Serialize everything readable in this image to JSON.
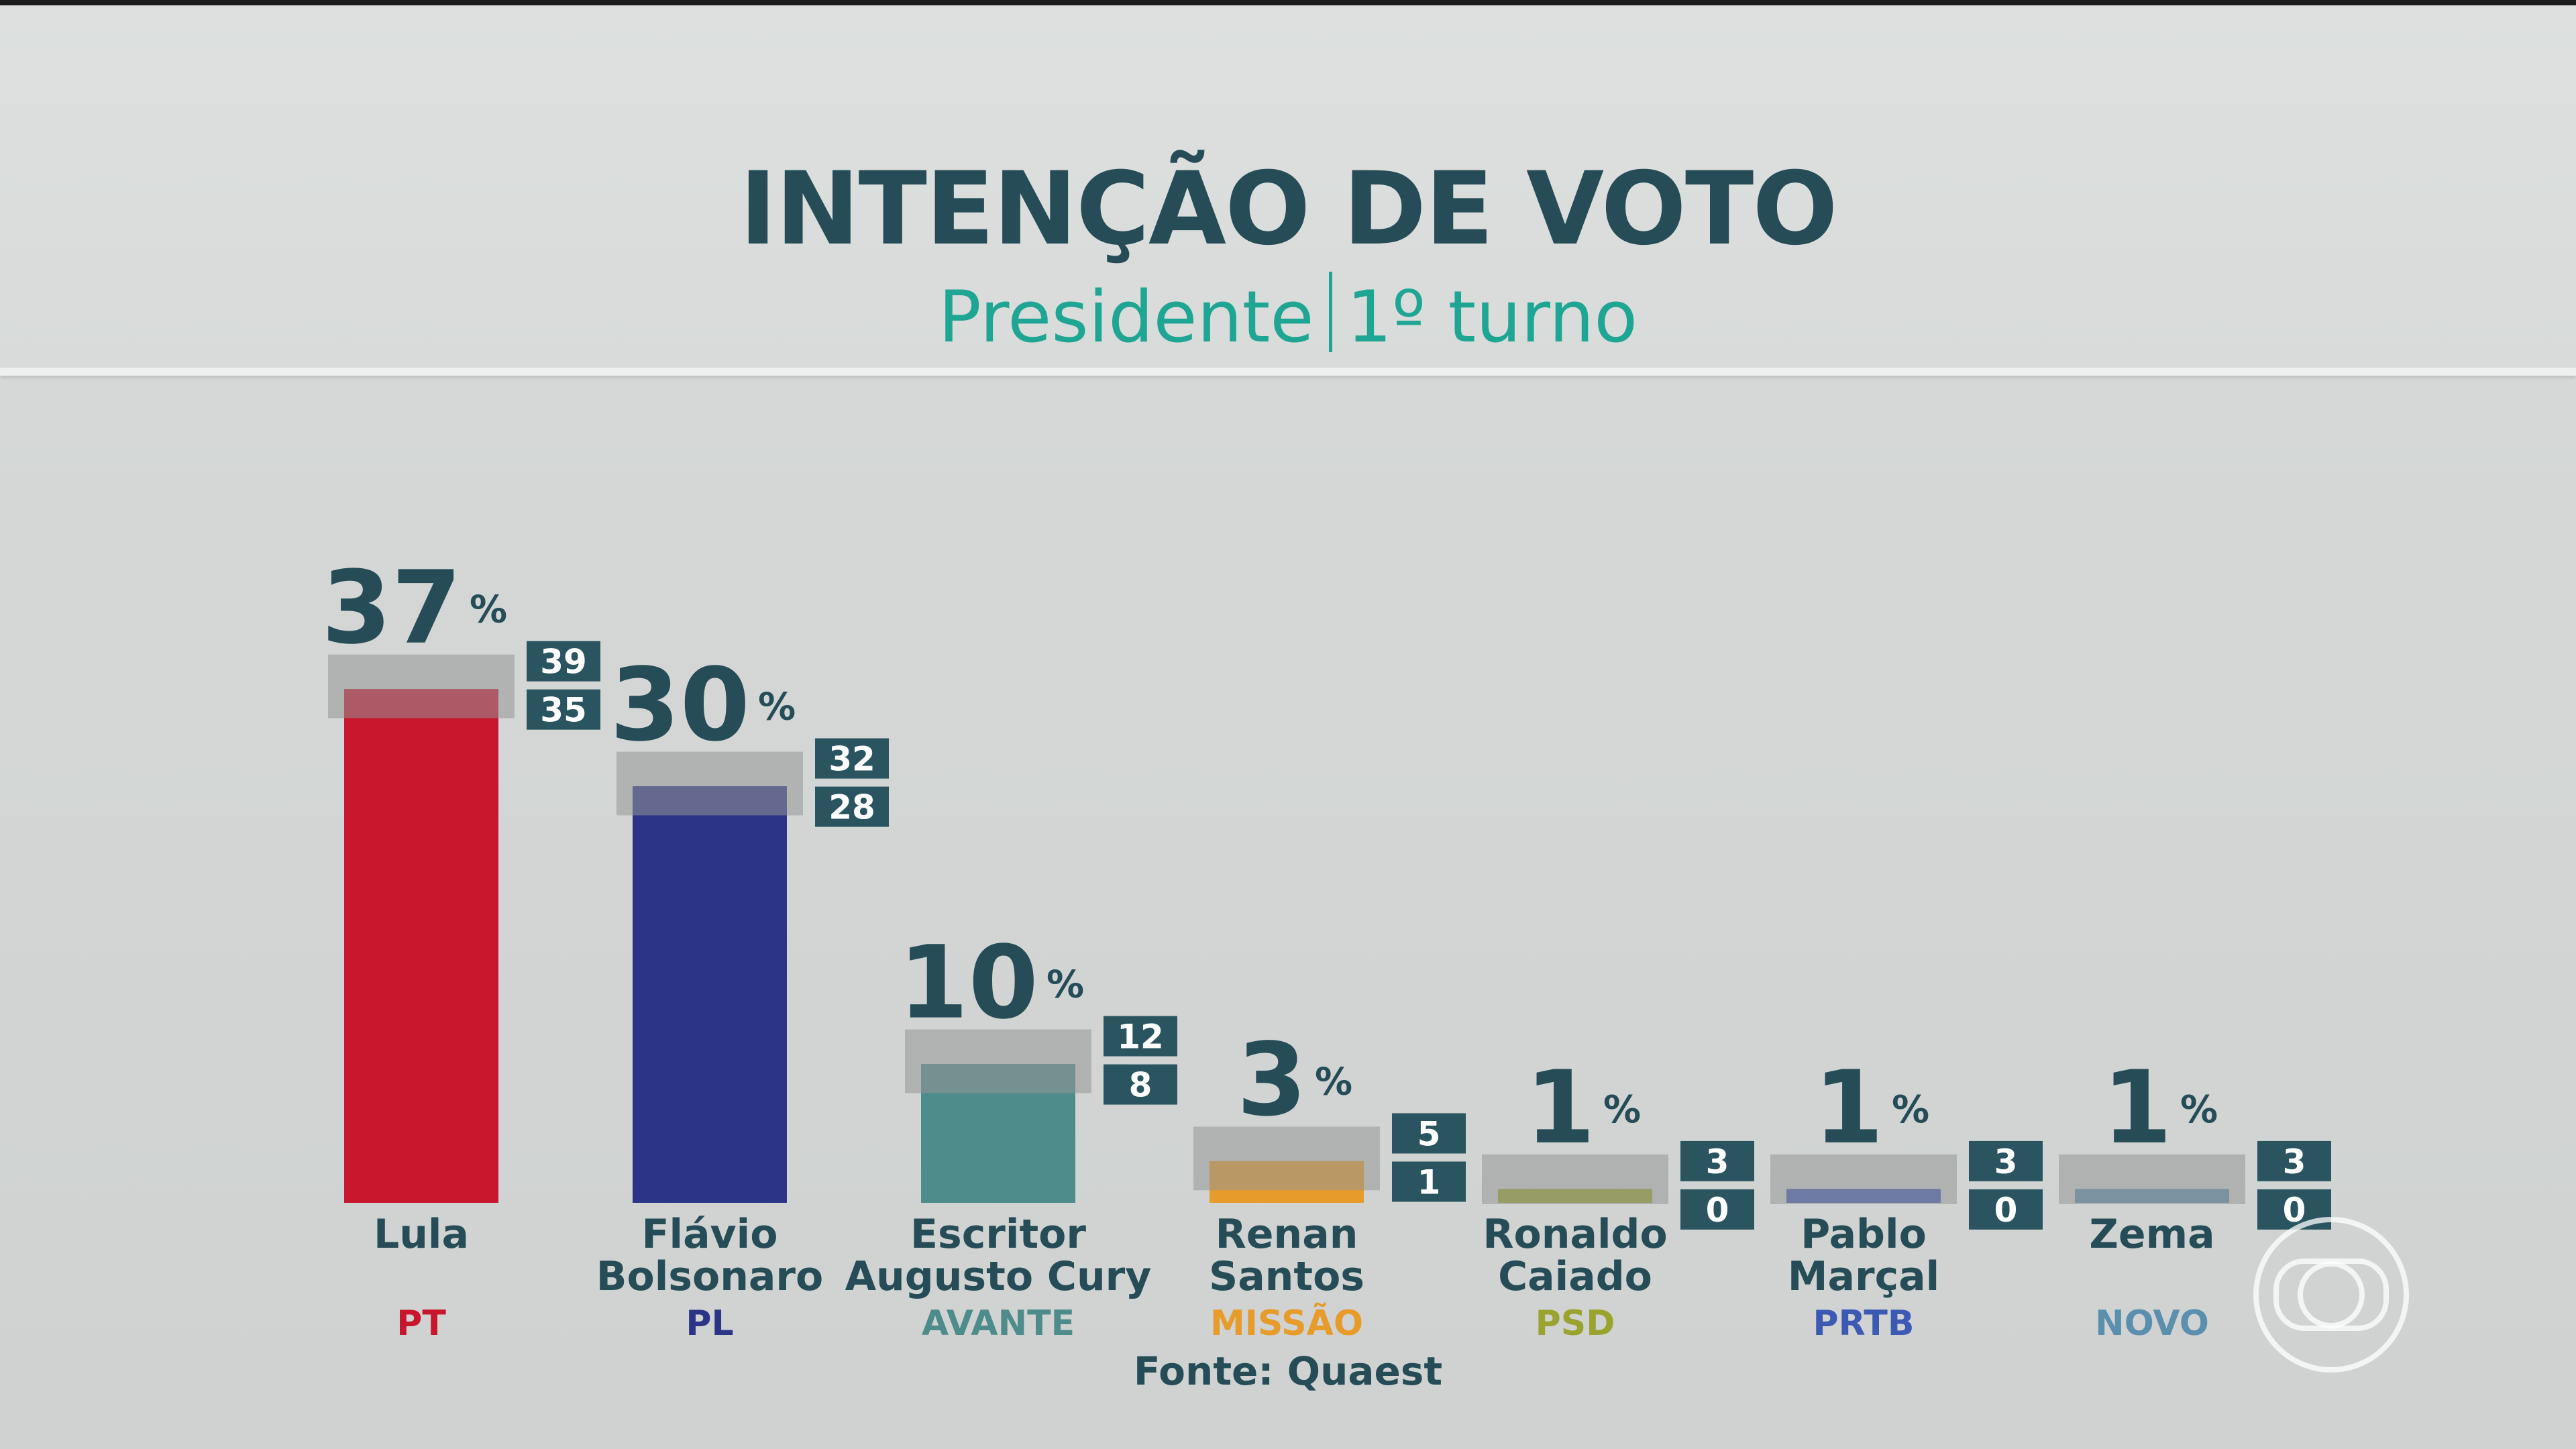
{
  "header": {
    "title": "INTENÇÃO DE VOTO",
    "subtitle_left": "Presidente",
    "subtitle_right": "1º turno"
  },
  "chart_data": {
    "type": "bar",
    "title": "INTENÇÃO DE VOTO",
    "subtitle": "Presidente | 1º turno",
    "unit": "%",
    "ylim": [
      0,
      40
    ],
    "categories": [
      {
        "name_lines": [
          "Lula"
        ],
        "party": "PT",
        "value": 37,
        "max": 39,
        "min": 35,
        "color": "#c8162d",
        "party_color": "#c8162d"
      },
      {
        "name_lines": [
          "Flávio",
          "Bolsonaro"
        ],
        "party": "PL",
        "value": 30,
        "max": 32,
        "min": 28,
        "color": "#2c3488",
        "party_color": "#2c3488"
      },
      {
        "name_lines": [
          "Escritor",
          "Augusto Cury"
        ],
        "party": "AVANTE",
        "value": 10,
        "max": 12,
        "min": 8,
        "color": "#4e8b8b",
        "party_color": "#4e8b8b"
      },
      {
        "name_lines": [
          "Renan",
          "Santos"
        ],
        "party": "MISSÃO",
        "value": 3,
        "max": 5,
        "min": 1,
        "color": "#e79b2a",
        "party_color": "#e79b2a"
      },
      {
        "name_lines": [
          "Ronaldo",
          "Caiado"
        ],
        "party": "PSD",
        "value": 1,
        "max": 3,
        "min": 0,
        "color": "#9aa32d",
        "party_color": "#9aa32d"
      },
      {
        "name_lines": [
          "Pablo",
          "Marçal"
        ],
        "party": "PRTB",
        "value": 1,
        "max": 3,
        "min": 0,
        "color": "#3c59b4",
        "party_color": "#3c59b4"
      },
      {
        "name_lines": [
          "Zema"
        ],
        "party": "NOVO",
        "value": 1,
        "max": 3,
        "min": 0,
        "color": "#5b8fae",
        "party_color": "#5b8fae"
      }
    ],
    "source": "Fonte: Quaest"
  },
  "colors": {
    "title": "#254c57",
    "subtitle": "#1fa594",
    "badge_bg": "#2a5560",
    "badge_text": "#ffffff"
  },
  "icons": [
    "globo-logo-icon"
  ]
}
